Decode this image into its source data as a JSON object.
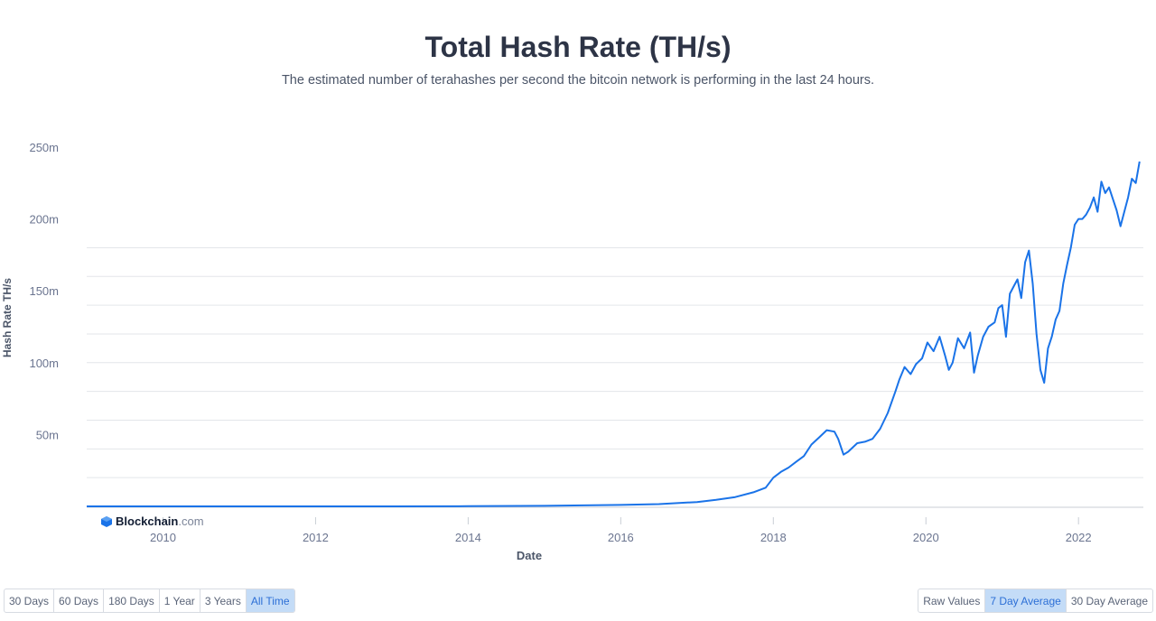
{
  "header": {
    "title": "Total Hash Rate (TH/s)",
    "subtitle": "The estimated number of terahashes per second the bitcoin network is performing in the last 24 hours."
  },
  "logo": {
    "name": "Blockchain",
    "tld": ".com"
  },
  "range_buttons": [
    {
      "label": "30 Days",
      "active": false
    },
    {
      "label": "60 Days",
      "active": false
    },
    {
      "label": "180 Days",
      "active": false
    },
    {
      "label": "1 Year",
      "active": false
    },
    {
      "label": "3 Years",
      "active": false
    },
    {
      "label": "All Time",
      "active": true
    }
  ],
  "avg_buttons": [
    {
      "label": "Raw Values",
      "active": false
    },
    {
      "label": "7 Day Average",
      "active": true
    },
    {
      "label": "30 Day Average",
      "active": false
    }
  ],
  "colors": {
    "line": "#1a73e8",
    "grid": "#e3e6ea",
    "axis_text": "#6b7590",
    "active_bg": "#c4dcf7"
  },
  "chart_data": {
    "type": "line",
    "title": "Total Hash Rate (TH/s)",
    "xlabel": "Date",
    "ylabel": "Hash Rate TH/s",
    "x_ticks": [
      "2010",
      "2012",
      "2014",
      "2016",
      "2018",
      "2020",
      "2022"
    ],
    "y_ticks": [
      "50m",
      "100m",
      "150m",
      "200m",
      "250m"
    ],
    "xlim": [
      2009.0,
      2022.85
    ],
    "ylim": [
      0,
      250
    ],
    "y_unit": "m",
    "grid": true,
    "series": [
      {
        "points": [
          [
            2009.0,
            0
          ],
          [
            2013.0,
            0.02
          ],
          [
            2014.0,
            0.1
          ],
          [
            2015.0,
            0.4
          ],
          [
            2016.0,
            1.0
          ],
          [
            2016.5,
            1.6
          ],
          [
            2017.0,
            3.0
          ],
          [
            2017.25,
            4.5
          ],
          [
            2017.5,
            6.5
          ],
          [
            2017.75,
            10
          ],
          [
            2017.9,
            13
          ],
          [
            2018.0,
            20
          ],
          [
            2018.1,
            24
          ],
          [
            2018.2,
            27
          ],
          [
            2018.3,
            31
          ],
          [
            2018.4,
            35
          ],
          [
            2018.5,
            43
          ],
          [
            2018.6,
            48
          ],
          [
            2018.7,
            53
          ],
          [
            2018.8,
            52
          ],
          [
            2018.85,
            47
          ],
          [
            2018.92,
            36
          ],
          [
            2018.98,
            38
          ],
          [
            2019.1,
            44
          ],
          [
            2019.2,
            45
          ],
          [
            2019.3,
            47
          ],
          [
            2019.4,
            54
          ],
          [
            2019.5,
            65
          ],
          [
            2019.6,
            80
          ],
          [
            2019.65,
            88
          ],
          [
            2019.72,
            97
          ],
          [
            2019.8,
            92
          ],
          [
            2019.87,
            99
          ],
          [
            2019.95,
            103
          ],
          [
            2020.02,
            114
          ],
          [
            2020.1,
            108
          ],
          [
            2020.18,
            118
          ],
          [
            2020.25,
            105
          ],
          [
            2020.3,
            95
          ],
          [
            2020.35,
            100
          ],
          [
            2020.42,
            117
          ],
          [
            2020.5,
            110
          ],
          [
            2020.58,
            121
          ],
          [
            2020.63,
            93
          ],
          [
            2020.68,
            105
          ],
          [
            2020.75,
            118
          ],
          [
            2020.82,
            125
          ],
          [
            2020.9,
            128
          ],
          [
            2020.95,
            138
          ],
          [
            2021.0,
            140
          ],
          [
            2021.05,
            118
          ],
          [
            2021.1,
            148
          ],
          [
            2021.15,
            153
          ],
          [
            2021.2,
            158
          ],
          [
            2021.25,
            145
          ],
          [
            2021.3,
            170
          ],
          [
            2021.35,
            178
          ],
          [
            2021.4,
            155
          ],
          [
            2021.45,
            120
          ],
          [
            2021.5,
            95
          ],
          [
            2021.55,
            86
          ],
          [
            2021.6,
            110
          ],
          [
            2021.65,
            118
          ],
          [
            2021.7,
            130
          ],
          [
            2021.75,
            136
          ],
          [
            2021.8,
            155
          ],
          [
            2021.85,
            168
          ],
          [
            2021.9,
            180
          ],
          [
            2021.95,
            196
          ],
          [
            2022.0,
            200
          ],
          [
            2022.05,
            200
          ],
          [
            2022.1,
            203
          ],
          [
            2022.15,
            208
          ],
          [
            2022.2,
            215
          ],
          [
            2022.25,
            205
          ],
          [
            2022.3,
            226
          ],
          [
            2022.35,
            218
          ],
          [
            2022.4,
            222
          ],
          [
            2022.45,
            214
          ],
          [
            2022.5,
            206
          ],
          [
            2022.55,
            195
          ],
          [
            2022.6,
            205
          ],
          [
            2022.65,
            215
          ],
          [
            2022.7,
            228
          ],
          [
            2022.75,
            225
          ],
          [
            2022.8,
            240
          ]
        ]
      }
    ]
  }
}
